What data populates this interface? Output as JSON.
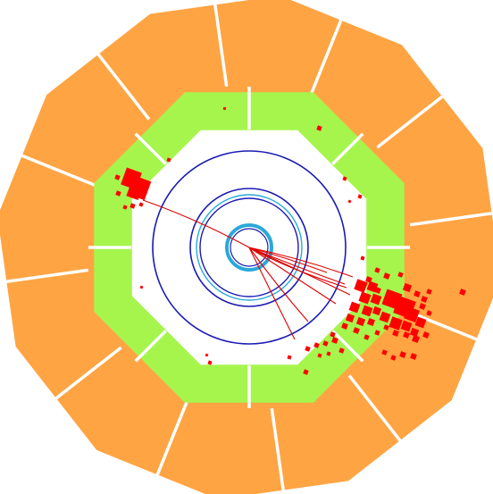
{
  "colors": {
    "background": "#ffffff",
    "outer_calorimeter": "#ffa443",
    "inner_calorimeter": "#a6f54d",
    "dividers": "#ffffff",
    "tracker_rings": "#1a1ab3",
    "vertex_rings": "#2aa9d8",
    "tracks": "#dd0000",
    "energy_deposits": "#ff0000"
  },
  "detector": {
    "outer_segments": 12,
    "inner_segments": 8
  },
  "icons": {
    "outer_layer": "dodecagon-ring-shape",
    "inner_layer": "octagon-ring-shape",
    "tracks": "line-shape",
    "deposits": "square-shape"
  }
}
